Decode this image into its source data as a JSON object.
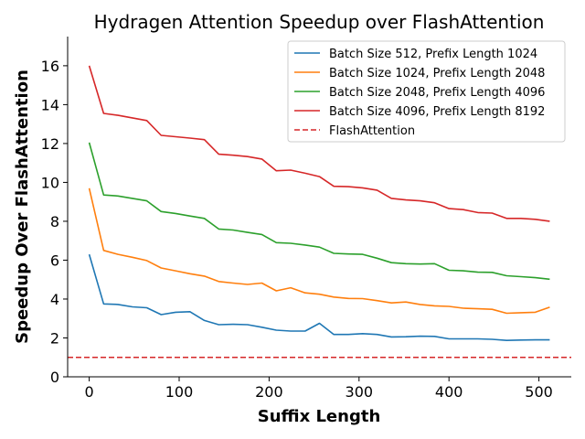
{
  "chart_data": {
    "type": "line",
    "title": "Hydragen Attention Speedup over FlashAttention",
    "xlabel": "Suffix Length",
    "ylabel": "Speedup Over FlashAttention",
    "xlim": [
      -24,
      536
    ],
    "ylim": [
      0,
      17.5
    ],
    "xticks": [
      0,
      100,
      200,
      300,
      400,
      500
    ],
    "yticks": [
      0,
      2,
      4,
      6,
      8,
      10,
      12,
      14,
      16
    ],
    "legend_position": "top-right",
    "x": [
      0,
      16,
      32,
      48,
      64,
      80,
      96,
      112,
      128,
      144,
      160,
      176,
      192,
      208,
      224,
      240,
      256,
      272,
      288,
      304,
      320,
      336,
      352,
      368,
      384,
      400,
      416,
      432,
      448,
      464,
      480,
      496,
      512
    ],
    "series": [
      {
        "name": "Batch Size 512, Prefix Length 1024",
        "color": "#1f77b4",
        "dash": "solid",
        "values": [
          6.3,
          3.75,
          3.72,
          3.6,
          3.55,
          3.2,
          3.32,
          3.35,
          2.9,
          2.68,
          2.7,
          2.68,
          2.55,
          2.4,
          2.35,
          2.35,
          2.75,
          2.18,
          2.18,
          2.22,
          2.18,
          2.05,
          2.06,
          2.09,
          2.08,
          1.95,
          1.95,
          1.95,
          1.93,
          1.87,
          1.89,
          1.9,
          1.9
        ]
      },
      {
        "name": "Batch Size 1024, Prefix Length 2048",
        "color": "#ff7f0e",
        "dash": "solid",
        "values": [
          9.7,
          6.5,
          6.3,
          6.15,
          5.98,
          5.6,
          5.45,
          5.3,
          5.18,
          4.9,
          4.82,
          4.75,
          4.82,
          4.42,
          4.58,
          4.32,
          4.25,
          4.1,
          4.03,
          4.02,
          3.92,
          3.8,
          3.85,
          3.72,
          3.65,
          3.62,
          3.53,
          3.5,
          3.47,
          3.27,
          3.3,
          3.32,
          3.58
        ]
      },
      {
        "name": "Batch Size 2048, Prefix Length 4096",
        "color": "#2ca02c",
        "dash": "solid",
        "values": [
          12.05,
          9.35,
          9.3,
          9.18,
          9.05,
          8.5,
          8.4,
          8.27,
          8.15,
          7.6,
          7.55,
          7.43,
          7.32,
          6.9,
          6.87,
          6.78,
          6.67,
          6.35,
          6.32,
          6.3,
          6.1,
          5.87,
          5.82,
          5.8,
          5.82,
          5.48,
          5.45,
          5.38,
          5.37,
          5.2,
          5.15,
          5.1,
          5.02
        ]
      },
      {
        "name": "Batch Size 4096, Prefix Length 8192",
        "color": "#d62728",
        "dash": "solid",
        "values": [
          16.0,
          13.55,
          13.45,
          13.32,
          13.18,
          12.42,
          12.35,
          12.28,
          12.2,
          11.45,
          11.4,
          11.33,
          11.2,
          10.6,
          10.63,
          10.47,
          10.3,
          9.8,
          9.78,
          9.72,
          9.6,
          9.18,
          9.1,
          9.05,
          8.95,
          8.65,
          8.6,
          8.45,
          8.42,
          8.15,
          8.15,
          8.1,
          8.0
        ]
      },
      {
        "name": "FlashAttention",
        "color": "#d62728",
        "dash": "dashed",
        "values": [
          1,
          1,
          1,
          1,
          1,
          1,
          1,
          1,
          1,
          1,
          1,
          1,
          1,
          1,
          1,
          1,
          1,
          1,
          1,
          1,
          1,
          1,
          1,
          1,
          1,
          1,
          1,
          1,
          1,
          1,
          1,
          1,
          1
        ]
      }
    ]
  }
}
